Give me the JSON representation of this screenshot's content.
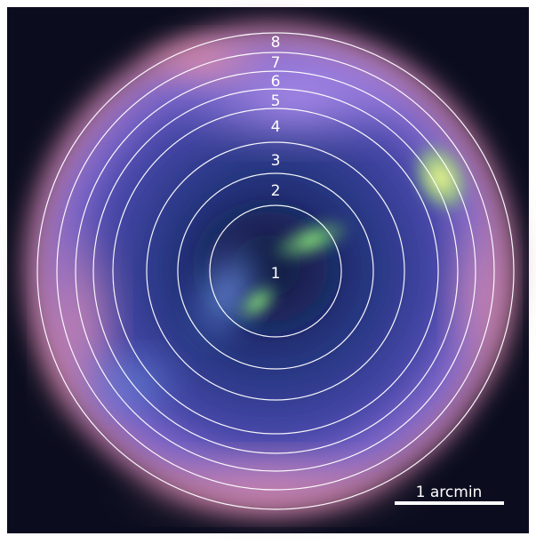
{
  "colors": {
    "border": "#ffffff",
    "sky": "#0b0d1f",
    "ring_line": "#ffffff",
    "nebula_outer": "#d77a9a",
    "nebula_mid": "#6b5fd0",
    "nebula_inner": "#2b3b86",
    "hotspot_green": "#7fe07a",
    "hotspot_yellow": "#efff78",
    "center_blue": "#5a7cd6"
  },
  "rings": [
    {
      "label": "1"
    },
    {
      "label": "2"
    },
    {
      "label": "3"
    },
    {
      "label": "4"
    },
    {
      "label": "5"
    },
    {
      "label": "6"
    },
    {
      "label": "7"
    },
    {
      "label": "8"
    }
  ],
  "scale_bar": {
    "label": "1 arcmin"
  }
}
